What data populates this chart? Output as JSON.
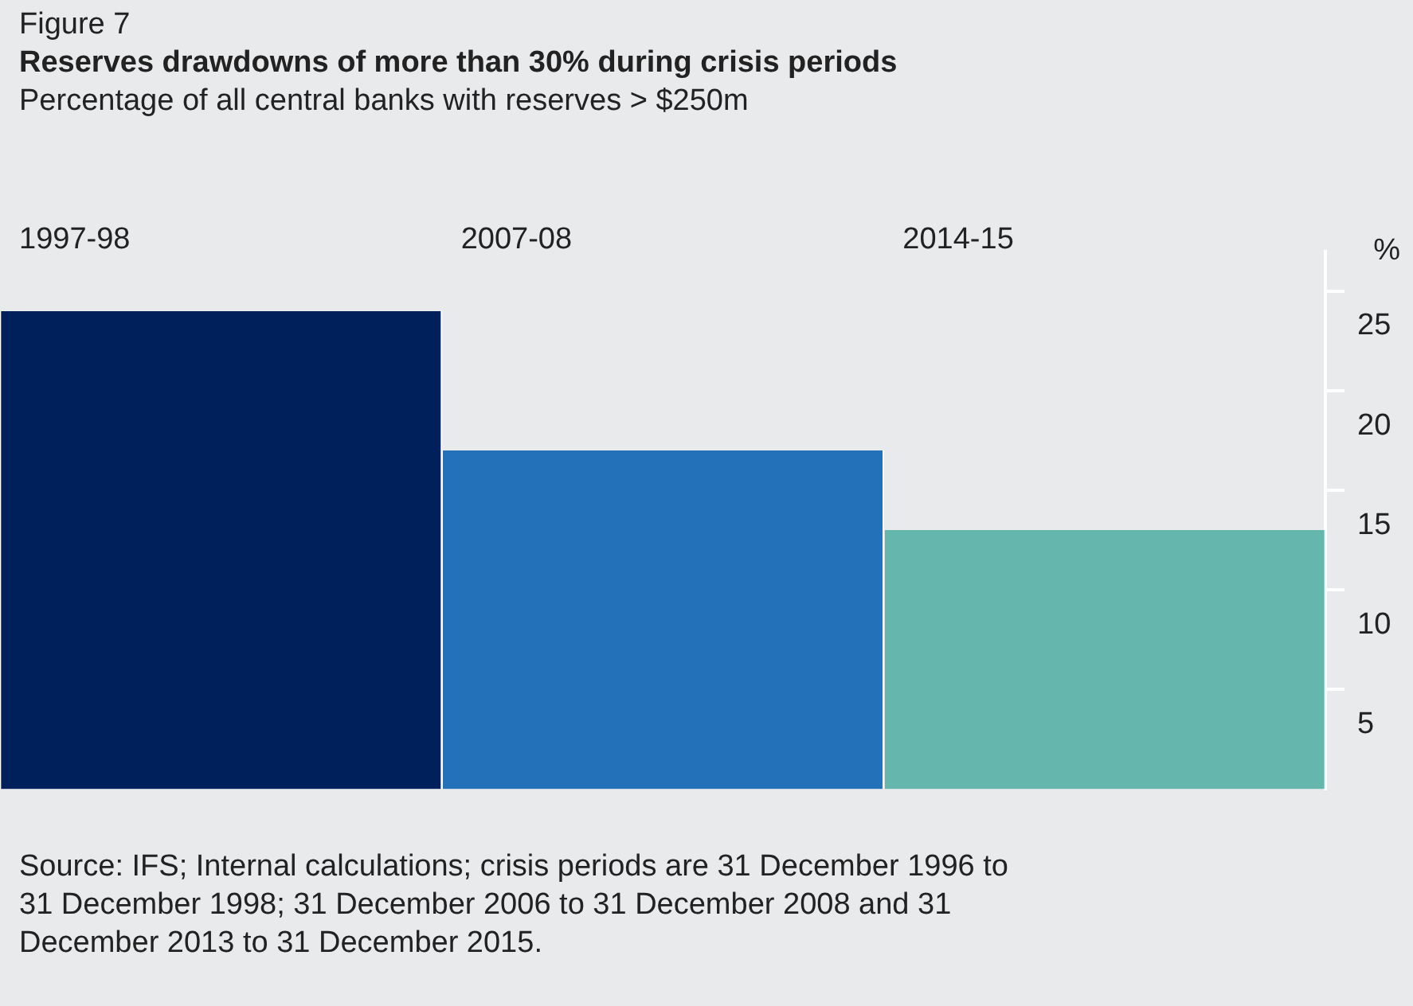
{
  "chart_data": {
    "type": "bar",
    "title": "Reserves drawdowns of more than 30% during crisis periods",
    "subtitle": "Percentage of all central banks with reserves > $250m",
    "ylabel": "%",
    "annotations": [
      "Figure 7",
      "Source: IFS; Internal calculations; crisis periods are 31 December 1996 to 31 December 1998; 31 December 2006 to 31 December 2008 and 31 December 2013 to 31 December 2015."
    ],
    "categories": [
      "1997-98",
      "2007-08",
      "2014-15"
    ],
    "values": [
      24,
      17,
      13
    ],
    "colors": [
      "#00205b",
      "#2271b9",
      "#65b7ae"
    ],
    "ylim": [
      0,
      27
    ],
    "yticks": [
      5,
      10,
      15,
      20,
      25
    ],
    "grid": false,
    "legend": false
  }
}
